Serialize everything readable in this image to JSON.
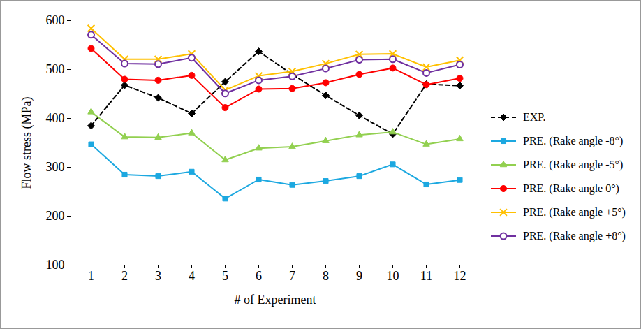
{
  "chart_data": {
    "type": "line",
    "x_label": "# of Experiment",
    "y_label": "Flow stress (MPa)",
    "categories": [
      "1",
      "2",
      "3",
      "4",
      "5",
      "6",
      "7",
      "8",
      "9",
      "10",
      "11",
      "12"
    ],
    "ylim": [
      100,
      600
    ],
    "yticks": [
      100,
      200,
      300,
      400,
      500,
      600
    ],
    "grid": false,
    "legend": "right",
    "series": [
      {
        "name": "EXP.",
        "color": "#000000",
        "marker": "diamond",
        "line_style": "dashed",
        "values": [
          385,
          468,
          442,
          410,
          475,
          537,
          490,
          447,
          406,
          368,
          470,
          467
        ]
      },
      {
        "name": "PRE. (Rake angle -8°)",
        "color": "#1CA8E0",
        "marker": "square",
        "line_style": "solid",
        "values": [
          347,
          285,
          282,
          291,
          236,
          275,
          264,
          272,
          282,
          306,
          265,
          274
        ]
      },
      {
        "name": "PRE. (Rake angle -5°)",
        "color": "#92D050",
        "marker": "triangle",
        "line_style": "solid",
        "values": [
          413,
          362,
          361,
          370,
          315,
          339,
          342,
          354,
          366,
          372,
          347,
          358
        ]
      },
      {
        "name": "PRE. (Rake angle 0°)",
        "color": "#FF0000",
        "marker": "circle",
        "line_style": "solid",
        "values": [
          543,
          480,
          478,
          488,
          422,
          460,
          461,
          473,
          490,
          503,
          469,
          482
        ]
      },
      {
        "name": "PRE. (Rake angle +5°)",
        "color": "#FFC000",
        "marker": "x",
        "line_style": "solid",
        "values": [
          584,
          521,
          521,
          532,
          458,
          487,
          496,
          512,
          531,
          532,
          505,
          519
        ]
      },
      {
        "name": "PRE. (Rake angle +8°)",
        "color": "#7030A0",
        "marker": "open_circle",
        "line_style": "solid",
        "values": [
          571,
          512,
          511,
          524,
          451,
          478,
          486,
          502,
          520,
          521,
          493,
          510
        ]
      }
    ]
  }
}
